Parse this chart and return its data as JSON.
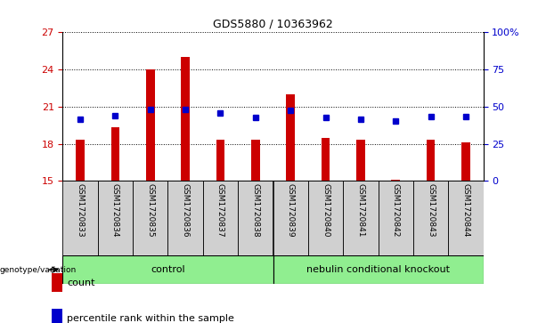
{
  "title": "GDS5880 / 10363962",
  "samples": [
    "GSM1720833",
    "GSM1720834",
    "GSM1720835",
    "GSM1720836",
    "GSM1720837",
    "GSM1720838",
    "GSM1720839",
    "GSM1720840",
    "GSM1720841",
    "GSM1720842",
    "GSM1720843",
    "GSM1720844"
  ],
  "count_values": [
    18.3,
    19.3,
    24.0,
    25.0,
    18.3,
    18.3,
    22.0,
    18.5,
    18.3,
    15.1,
    18.3,
    18.1
  ],
  "percentile_values": [
    20.0,
    20.3,
    20.8,
    20.8,
    20.5,
    20.1,
    20.7,
    20.1,
    20.0,
    19.8,
    20.2,
    20.2
  ],
  "ylim_left": [
    15,
    27
  ],
  "ylim_right": [
    0,
    100
  ],
  "yticks_left": [
    15,
    18,
    21,
    24,
    27
  ],
  "yticks_right": [
    0,
    25,
    50,
    75,
    100
  ],
  "ytick_labels_right": [
    "0",
    "25",
    "50",
    "75",
    "100%"
  ],
  "bar_color": "#cc0000",
  "dot_color": "#0000cc",
  "bar_width": 0.25,
  "groups": [
    {
      "label": "control",
      "indices": [
        0,
        1,
        2,
        3,
        4,
        5
      ],
      "color": "#90ee90"
    },
    {
      "label": "nebulin conditional knockout",
      "indices": [
        6,
        7,
        8,
        9,
        10,
        11
      ],
      "color": "#90ee90"
    }
  ],
  "group_label_prefix": "genotype/variation",
  "legend_items": [
    {
      "label": "count",
      "color": "#cc0000"
    },
    {
      "label": "percentile rank within the sample",
      "color": "#0000cc"
    }
  ],
  "sample_bg_color": "#d0d0d0",
  "plot_bg_color": "#ffffff",
  "grid_color": "#000000",
  "tick_color_left": "#cc0000",
  "tick_color_right": "#0000cc"
}
